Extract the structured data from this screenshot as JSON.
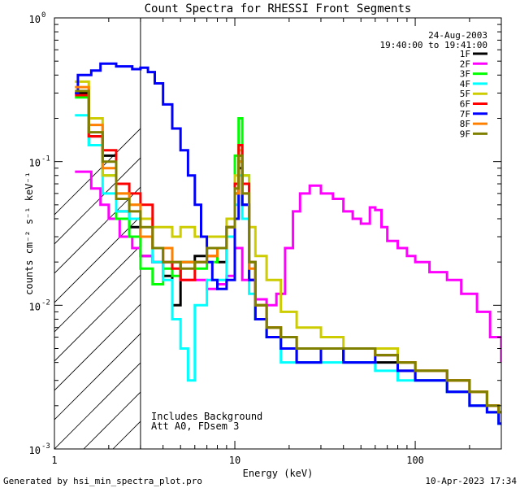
{
  "chart_data": {
    "type": "line",
    "title": "Count Spectra for RHESSI Front Segments",
    "xlabel": "Energy (keV)",
    "ylabel": "counts cm⁻² s⁻¹ keV⁻¹",
    "xscale": "log",
    "yscale": "log",
    "xlim": [
      1,
      300
    ],
    "ylim": [
      0.001,
      1
    ],
    "xticks": [
      {
        "value": 1,
        "label": "1"
      },
      {
        "value": 10,
        "label": "10"
      },
      {
        "value": 100,
        "label": "100"
      }
    ],
    "yticks": [
      {
        "value": 1,
        "base": "10",
        "exp": "0"
      },
      {
        "value": 0.1,
        "base": "10",
        "exp": "-1"
      },
      {
        "value": 0.01,
        "base": "10",
        "exp": "-2"
      },
      {
        "value": 0.001,
        "base": "10",
        "exp": "-3"
      }
    ],
    "legend_position": "top-right",
    "date": "24-Aug-2003",
    "time_range": "19:40:00 to 19:41:00",
    "annotations": [
      "Includes Background",
      "Att A0, FDsem 3"
    ],
    "shaded_region_xmax": 3,
    "series": [
      {
        "name": "1F",
        "color": "#000000",
        "points": [
          [
            1.3,
            0.3
          ],
          [
            1.55,
            0.15
          ],
          [
            1.85,
            0.11
          ],
          [
            2.2,
            0.045
          ],
          [
            2.6,
            0.035
          ],
          [
            3.0,
            0.022
          ],
          [
            3.5,
            0.02
          ],
          [
            4.0,
            0.016
          ],
          [
            4.5,
            0.01
          ],
          [
            5.0,
            0.02
          ],
          [
            6.0,
            0.022
          ],
          [
            7.0,
            0.025
          ],
          [
            8.0,
            0.02
          ],
          [
            9.0,
            0.035
          ],
          [
            10.0,
            0.06
          ],
          [
            10.5,
            0.09
          ],
          [
            11.0,
            0.05
          ],
          [
            12.0,
            0.015
          ],
          [
            13.0,
            0.008
          ],
          [
            15.0,
            0.006
          ],
          [
            18.0,
            0.005
          ],
          [
            22.0,
            0.004
          ],
          [
            30.0,
            0.005
          ],
          [
            40.0,
            0.004
          ],
          [
            60.0,
            0.004
          ],
          [
            80.0,
            0.0035
          ],
          [
            100.0,
            0.003
          ],
          [
            150.0,
            0.0025
          ],
          [
            200.0,
            0.002
          ],
          [
            250.0,
            0.0018
          ],
          [
            290.0,
            0.0015
          ]
        ]
      },
      {
        "name": "2F",
        "color": "#ff00ff",
        "points": [
          [
            1.3,
            0.085
          ],
          [
            1.45,
            0.085
          ],
          [
            1.6,
            0.065
          ],
          [
            1.8,
            0.05
          ],
          [
            2.0,
            0.04
          ],
          [
            2.3,
            0.03
          ],
          [
            2.7,
            0.025
          ],
          [
            3.0,
            0.022
          ],
          [
            3.5,
            0.02
          ],
          [
            4.0,
            0.02
          ],
          [
            5.0,
            0.015
          ],
          [
            6.0,
            0.015
          ],
          [
            7.0,
            0.013
          ],
          [
            8.0,
            0.014
          ],
          [
            9.0,
            0.016
          ],
          [
            10.0,
            0.025
          ],
          [
            11.0,
            0.015
          ],
          [
            13.0,
            0.011
          ],
          [
            15.0,
            0.01
          ],
          [
            17.0,
            0.012
          ],
          [
            19.0,
            0.025
          ],
          [
            21.0,
            0.045
          ],
          [
            23.0,
            0.06
          ],
          [
            26.0,
            0.068
          ],
          [
            30.0,
            0.06
          ],
          [
            35.0,
            0.055
          ],
          [
            40.0,
            0.045
          ],
          [
            45.0,
            0.04
          ],
          [
            50.0,
            0.037
          ],
          [
            56.0,
            0.048
          ],
          [
            60.0,
            0.046
          ],
          [
            65.0,
            0.035
          ],
          [
            70.0,
            0.028
          ],
          [
            80.0,
            0.025
          ],
          [
            90.0,
            0.022
          ],
          [
            100.0,
            0.02
          ],
          [
            120.0,
            0.017
          ],
          [
            150.0,
            0.015
          ],
          [
            180.0,
            0.012
          ],
          [
            220.0,
            0.009
          ],
          [
            260.0,
            0.006
          ],
          [
            300.0,
            0.004
          ]
        ]
      },
      {
        "name": "3F",
        "color": "#00ff00",
        "points": [
          [
            1.3,
            0.28
          ],
          [
            1.55,
            0.13
          ],
          [
            1.85,
            0.08
          ],
          [
            2.2,
            0.04
          ],
          [
            2.6,
            0.03
          ],
          [
            3.0,
            0.018
          ],
          [
            3.5,
            0.014
          ],
          [
            4.0,
            0.018
          ],
          [
            4.5,
            0.016
          ],
          [
            5.0,
            0.02
          ],
          [
            6.0,
            0.018
          ],
          [
            7.0,
            0.02
          ],
          [
            8.0,
            0.025
          ],
          [
            9.0,
            0.035
          ],
          [
            10.0,
            0.11
          ],
          [
            10.5,
            0.2
          ],
          [
            11.0,
            0.08
          ],
          [
            12.0,
            0.02
          ],
          [
            13.0,
            0.01
          ],
          [
            15.0,
            0.007
          ],
          [
            18.0,
            0.005
          ],
          [
            22.0,
            0.005
          ],
          [
            30.0,
            0.005
          ],
          [
            40.0,
            0.005
          ],
          [
            60.0,
            0.005
          ],
          [
            80.0,
            0.004
          ],
          [
            100.0,
            0.0035
          ],
          [
            150.0,
            0.003
          ],
          [
            200.0,
            0.0025
          ],
          [
            250.0,
            0.002
          ],
          [
            290.0,
            0.0018
          ]
        ]
      },
      {
        "name": "4F",
        "color": "#00ffff",
        "points": [
          [
            1.3,
            0.21
          ],
          [
            1.55,
            0.13
          ],
          [
            1.85,
            0.06
          ],
          [
            2.2,
            0.045
          ],
          [
            2.6,
            0.04
          ],
          [
            3.0,
            0.03
          ],
          [
            3.5,
            0.02
          ],
          [
            4.0,
            0.015
          ],
          [
            4.5,
            0.008
          ],
          [
            5.0,
            0.005
          ],
          [
            5.5,
            0.003
          ],
          [
            6.0,
            0.01
          ],
          [
            7.0,
            0.015
          ],
          [
            8.0,
            0.015
          ],
          [
            9.0,
            0.03
          ],
          [
            10.0,
            0.05
          ],
          [
            10.5,
            0.08
          ],
          [
            11.0,
            0.04
          ],
          [
            12.0,
            0.012
          ],
          [
            13.0,
            0.008
          ],
          [
            15.0,
            0.006
          ],
          [
            18.0,
            0.004
          ],
          [
            22.0,
            0.004
          ],
          [
            30.0,
            0.004
          ],
          [
            40.0,
            0.004
          ],
          [
            60.0,
            0.0035
          ],
          [
            80.0,
            0.003
          ],
          [
            100.0,
            0.003
          ],
          [
            150.0,
            0.0025
          ],
          [
            200.0,
            0.002
          ],
          [
            250.0,
            0.0018
          ],
          [
            290.0,
            0.0015
          ]
        ]
      },
      {
        "name": "5F",
        "color": "#cccc00",
        "points": [
          [
            1.3,
            0.36
          ],
          [
            1.55,
            0.2
          ],
          [
            1.85,
            0.08
          ],
          [
            2.2,
            0.06
          ],
          [
            2.6,
            0.05
          ],
          [
            3.0,
            0.04
          ],
          [
            3.5,
            0.035
          ],
          [
            4.0,
            0.035
          ],
          [
            4.5,
            0.03
          ],
          [
            5.0,
            0.035
          ],
          [
            6.0,
            0.03
          ],
          [
            7.0,
            0.03
          ],
          [
            8.0,
            0.03
          ],
          [
            9.0,
            0.04
          ],
          [
            10.0,
            0.08
          ],
          [
            10.5,
            0.12
          ],
          [
            11.0,
            0.08
          ],
          [
            12.0,
            0.035
          ],
          [
            13.0,
            0.022
          ],
          [
            15.0,
            0.015
          ],
          [
            18.0,
            0.009
          ],
          [
            22.0,
            0.007
          ],
          [
            30.0,
            0.006
          ],
          [
            40.0,
            0.005
          ],
          [
            60.0,
            0.005
          ],
          [
            80.0,
            0.004
          ],
          [
            100.0,
            0.0035
          ],
          [
            150.0,
            0.003
          ],
          [
            200.0,
            0.0025
          ],
          [
            250.0,
            0.002
          ],
          [
            290.0,
            0.0018
          ]
        ]
      },
      {
        "name": "6F",
        "color": "#ff0000",
        "points": [
          [
            1.3,
            0.29
          ],
          [
            1.55,
            0.15
          ],
          [
            1.85,
            0.12
          ],
          [
            2.2,
            0.07
          ],
          [
            2.6,
            0.06
          ],
          [
            3.0,
            0.05
          ],
          [
            3.5,
            0.025
          ],
          [
            4.0,
            0.02
          ],
          [
            4.5,
            0.018
          ],
          [
            5.0,
            0.015
          ],
          [
            6.0,
            0.02
          ],
          [
            7.0,
            0.022
          ],
          [
            8.0,
            0.025
          ],
          [
            9.0,
            0.035
          ],
          [
            10.0,
            0.07
          ],
          [
            10.5,
            0.13
          ],
          [
            11.0,
            0.07
          ],
          [
            12.0,
            0.02
          ],
          [
            13.0,
            0.01
          ],
          [
            15.0,
            0.007
          ],
          [
            18.0,
            0.006
          ],
          [
            22.0,
            0.005
          ],
          [
            30.0,
            0.005
          ],
          [
            40.0,
            0.005
          ],
          [
            60.0,
            0.0045
          ],
          [
            80.0,
            0.004
          ],
          [
            100.0,
            0.0035
          ],
          [
            150.0,
            0.003
          ],
          [
            200.0,
            0.0025
          ],
          [
            250.0,
            0.002
          ],
          [
            290.0,
            0.0018
          ]
        ]
      },
      {
        "name": "7F",
        "color": "#0000ff",
        "points": [
          [
            1.3,
            0.3
          ],
          [
            1.35,
            0.4
          ],
          [
            1.6,
            0.43
          ],
          [
            1.8,
            0.48
          ],
          [
            2.2,
            0.46
          ],
          [
            2.7,
            0.44
          ],
          [
            3.0,
            0.45
          ],
          [
            3.3,
            0.42
          ],
          [
            3.6,
            0.35
          ],
          [
            4.0,
            0.25
          ],
          [
            4.5,
            0.17
          ],
          [
            5.0,
            0.12
          ],
          [
            5.5,
            0.08
          ],
          [
            6.0,
            0.05
          ],
          [
            6.5,
            0.03
          ],
          [
            7.0,
            0.02
          ],
          [
            7.5,
            0.015
          ],
          [
            8.0,
            0.013
          ],
          [
            9.0,
            0.015
          ],
          [
            10.0,
            0.04
          ],
          [
            10.5,
            0.1
          ],
          [
            11.0,
            0.05
          ],
          [
            12.0,
            0.015
          ],
          [
            13.0,
            0.008
          ],
          [
            15.0,
            0.006
          ],
          [
            18.0,
            0.005
          ],
          [
            22.0,
            0.004
          ],
          [
            30.0,
            0.005
          ],
          [
            40.0,
            0.004
          ],
          [
            60.0,
            0.0045
          ],
          [
            80.0,
            0.0035
          ],
          [
            100.0,
            0.003
          ],
          [
            150.0,
            0.0025
          ],
          [
            200.0,
            0.002
          ],
          [
            250.0,
            0.0018
          ],
          [
            290.0,
            0.0015
          ]
        ]
      },
      {
        "name": "8F",
        "color": "#ff8000",
        "points": [
          [
            1.3,
            0.33
          ],
          [
            1.55,
            0.18
          ],
          [
            1.85,
            0.09
          ],
          [
            2.2,
            0.06
          ],
          [
            2.6,
            0.05
          ],
          [
            3.0,
            0.03
          ],
          [
            3.5,
            0.025
          ],
          [
            4.0,
            0.025
          ],
          [
            4.5,
            0.02
          ],
          [
            5.0,
            0.02
          ],
          [
            6.0,
            0.02
          ],
          [
            7.0,
            0.022
          ],
          [
            8.0,
            0.025
          ],
          [
            9.0,
            0.035
          ],
          [
            10.0,
            0.06
          ],
          [
            10.5,
            0.1
          ],
          [
            11.0,
            0.06
          ],
          [
            12.0,
            0.018
          ],
          [
            13.0,
            0.01
          ],
          [
            15.0,
            0.007
          ],
          [
            18.0,
            0.006
          ],
          [
            22.0,
            0.005
          ],
          [
            30.0,
            0.005
          ],
          [
            40.0,
            0.005
          ],
          [
            60.0,
            0.0045
          ],
          [
            80.0,
            0.004
          ],
          [
            100.0,
            0.0035
          ],
          [
            150.0,
            0.003
          ],
          [
            200.0,
            0.0025
          ],
          [
            250.0,
            0.002
          ],
          [
            290.0,
            0.0018
          ]
        ]
      },
      {
        "name": "9F",
        "color": "#808000",
        "points": [
          [
            1.3,
            0.31
          ],
          [
            1.55,
            0.16
          ],
          [
            1.85,
            0.1
          ],
          [
            2.2,
            0.055
          ],
          [
            2.6,
            0.045
          ],
          [
            3.0,
            0.035
          ],
          [
            3.5,
            0.025
          ],
          [
            4.0,
            0.02
          ],
          [
            4.5,
            0.02
          ],
          [
            5.0,
            0.018
          ],
          [
            6.0,
            0.02
          ],
          [
            7.0,
            0.025
          ],
          [
            8.0,
            0.025
          ],
          [
            9.0,
            0.035
          ],
          [
            10.0,
            0.065
          ],
          [
            10.5,
            0.11
          ],
          [
            11.0,
            0.06
          ],
          [
            12.0,
            0.02
          ],
          [
            13.0,
            0.01
          ],
          [
            15.0,
            0.007
          ],
          [
            18.0,
            0.006
          ],
          [
            22.0,
            0.005
          ],
          [
            30.0,
            0.005
          ],
          [
            40.0,
            0.005
          ],
          [
            60.0,
            0.0045
          ],
          [
            80.0,
            0.004
          ],
          [
            100.0,
            0.0035
          ],
          [
            150.0,
            0.003
          ],
          [
            200.0,
            0.0025
          ],
          [
            250.0,
            0.002
          ],
          [
            290.0,
            0.0018
          ]
        ]
      }
    ]
  },
  "footer": {
    "generated_by": "Generated by hsi_min_spectra_plot.pro",
    "timestamp": "10-Apr-2023 17:34"
  }
}
